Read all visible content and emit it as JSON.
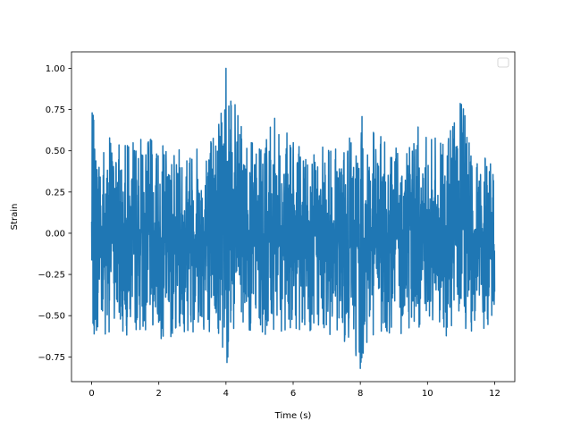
{
  "chart_data": {
    "type": "line",
    "xlabel": "Time (s)",
    "ylabel": "Strain",
    "xlim": [
      -0.6,
      12.6
    ],
    "ylim": [
      -0.9,
      1.1
    ],
    "xticks": [
      0,
      2,
      4,
      6,
      8,
      10,
      12
    ],
    "xtick_labels": [
      "0",
      "2",
      "4",
      "6",
      "8",
      "10",
      "12"
    ],
    "yticks": [
      -0.75,
      -0.5,
      -0.25,
      0.0,
      0.25,
      0.5,
      0.75,
      1.0
    ],
    "ytick_labels": [
      "−0.75",
      "−0.50",
      "−0.25",
      "0.00",
      "0.25",
      "0.50",
      "0.75",
      "1.00"
    ],
    "grid": false,
    "legend": {
      "placement": "top-right",
      "entries": []
    },
    "series": [
      {
        "color": "#1f77b4",
        "signal": "noise-like strain time series, sampled over 0–12 s",
        "x_start": 0,
        "x_end": 12,
        "max": 1.0,
        "max_at": 4.0,
        "min": -0.82,
        "min_at": 8.0,
        "envelope_x": [
          0,
          0.1,
          0.5,
          1,
          1.5,
          2,
          2.5,
          3,
          3.5,
          4,
          4.5,
          5,
          5.5,
          6,
          6.5,
          7,
          7.5,
          8,
          8.5,
          9,
          9.5,
          10,
          10.5,
          11,
          11.5,
          12
        ],
        "upper": [
          0.78,
          0.65,
          0.6,
          0.55,
          0.6,
          0.55,
          0.5,
          0.58,
          0.6,
          1.0,
          0.62,
          0.52,
          0.72,
          0.55,
          0.5,
          0.55,
          0.5,
          0.72,
          0.6,
          0.55,
          0.7,
          0.6,
          0.55,
          0.8,
          0.5,
          0.42
        ],
        "lower": [
          -0.75,
          -0.65,
          -0.6,
          -0.62,
          -0.6,
          -0.65,
          -0.62,
          -0.6,
          -0.6,
          -0.8,
          -0.6,
          -0.62,
          -0.6,
          -0.58,
          -0.6,
          -0.62,
          -0.65,
          -0.82,
          -0.6,
          -0.62,
          -0.6,
          -0.58,
          -0.62,
          -0.65,
          -0.6,
          -0.55
        ]
      }
    ]
  }
}
